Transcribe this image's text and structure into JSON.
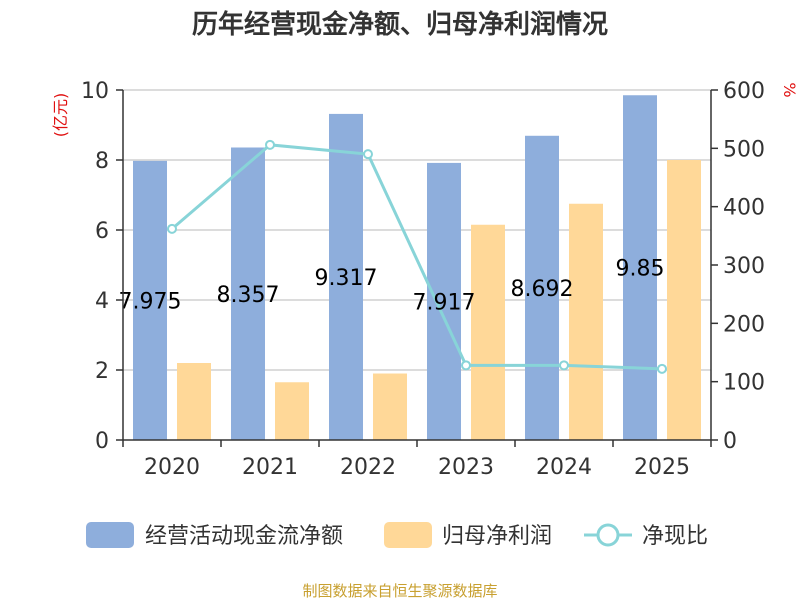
{
  "chart_data": {
    "type": "bar",
    "title": "历年经营现金净额、归母净利润情况",
    "categories": [
      "2020",
      "2021",
      "2022",
      "2023",
      "2024",
      "2025"
    ],
    "series": [
      {
        "name": "经营活动现金流净额",
        "kind": "bar",
        "axis": "left",
        "color": "#8eaedc",
        "values": [
          7.975,
          8.357,
          9.317,
          7.917,
          8.692,
          9.85
        ]
      },
      {
        "name": "归母净利润",
        "kind": "bar",
        "axis": "left",
        "color": "#ffd898",
        "values": [
          2.2,
          1.65,
          1.9,
          6.15,
          6.75,
          8.0
        ]
      },
      {
        "name": "净现比",
        "kind": "line",
        "axis": "right",
        "color": "#88d4d8",
        "values": [
          362,
          506,
          490,
          128,
          128,
          122
        ]
      }
    ],
    "data_labels": [
      "7.975",
      "8.357",
      "9.317",
      "7.917",
      "8.692",
      "9.85"
    ],
    "y_left": {
      "unit": "(亿元)",
      "ylim": [
        0,
        10
      ],
      "ticks": [
        "0",
        "2",
        "4",
        "6",
        "8",
        "10"
      ]
    },
    "y_right": {
      "unit": "%",
      "ylim": [
        0,
        600
      ],
      "ticks": [
        "0",
        "100",
        "200",
        "300",
        "400",
        "500",
        "600"
      ]
    },
    "grid": true,
    "legend_position": "bottom",
    "source": "制图数据来自恒生聚源数据库"
  }
}
